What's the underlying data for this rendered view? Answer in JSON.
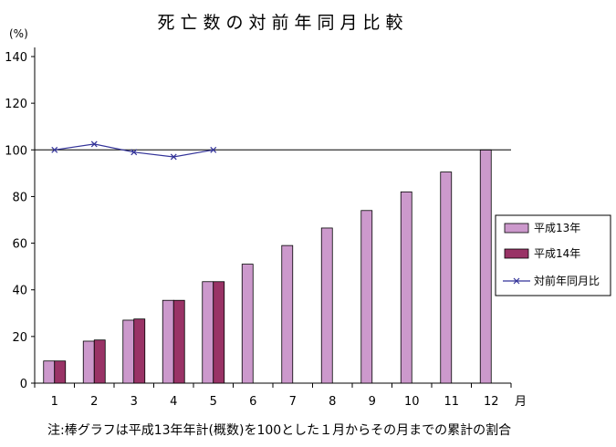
{
  "chart_data": {
    "type": "bar",
    "title": "死亡数の対前年同月比較",
    "ylabel": "(%)",
    "xlabel": "月",
    "categories": [
      "1",
      "2",
      "3",
      "4",
      "5",
      "6",
      "7",
      "8",
      "9",
      "10",
      "11",
      "12"
    ],
    "ylim": [
      0,
      140
    ],
    "yticks": [
      0,
      20,
      40,
      60,
      80,
      100,
      120,
      140
    ],
    "grid": false,
    "reference_line": 100,
    "legend_position": "right",
    "series": [
      {
        "name": "平成13年",
        "type": "bar",
        "color": "#cc99cc",
        "values": [
          9.5,
          18,
          27,
          35.5,
          43.5,
          51,
          59,
          66.5,
          74,
          82,
          90.5,
          100
        ]
      },
      {
        "name": "平成14年",
        "type": "bar",
        "color": "#993366",
        "values": [
          9.5,
          18.5,
          27.5,
          35.5,
          43.5,
          null,
          null,
          null,
          null,
          null,
          null,
          null
        ]
      },
      {
        "name": "対前年同月比",
        "type": "line",
        "color": "#333399",
        "values": [
          100,
          102.5,
          99,
          97,
          100,
          null,
          null,
          null,
          null,
          null,
          null,
          null
        ]
      }
    ],
    "note": "注:棒グラフは平成13年年計(概数)を100とした１月からその月までの累計の割合"
  }
}
